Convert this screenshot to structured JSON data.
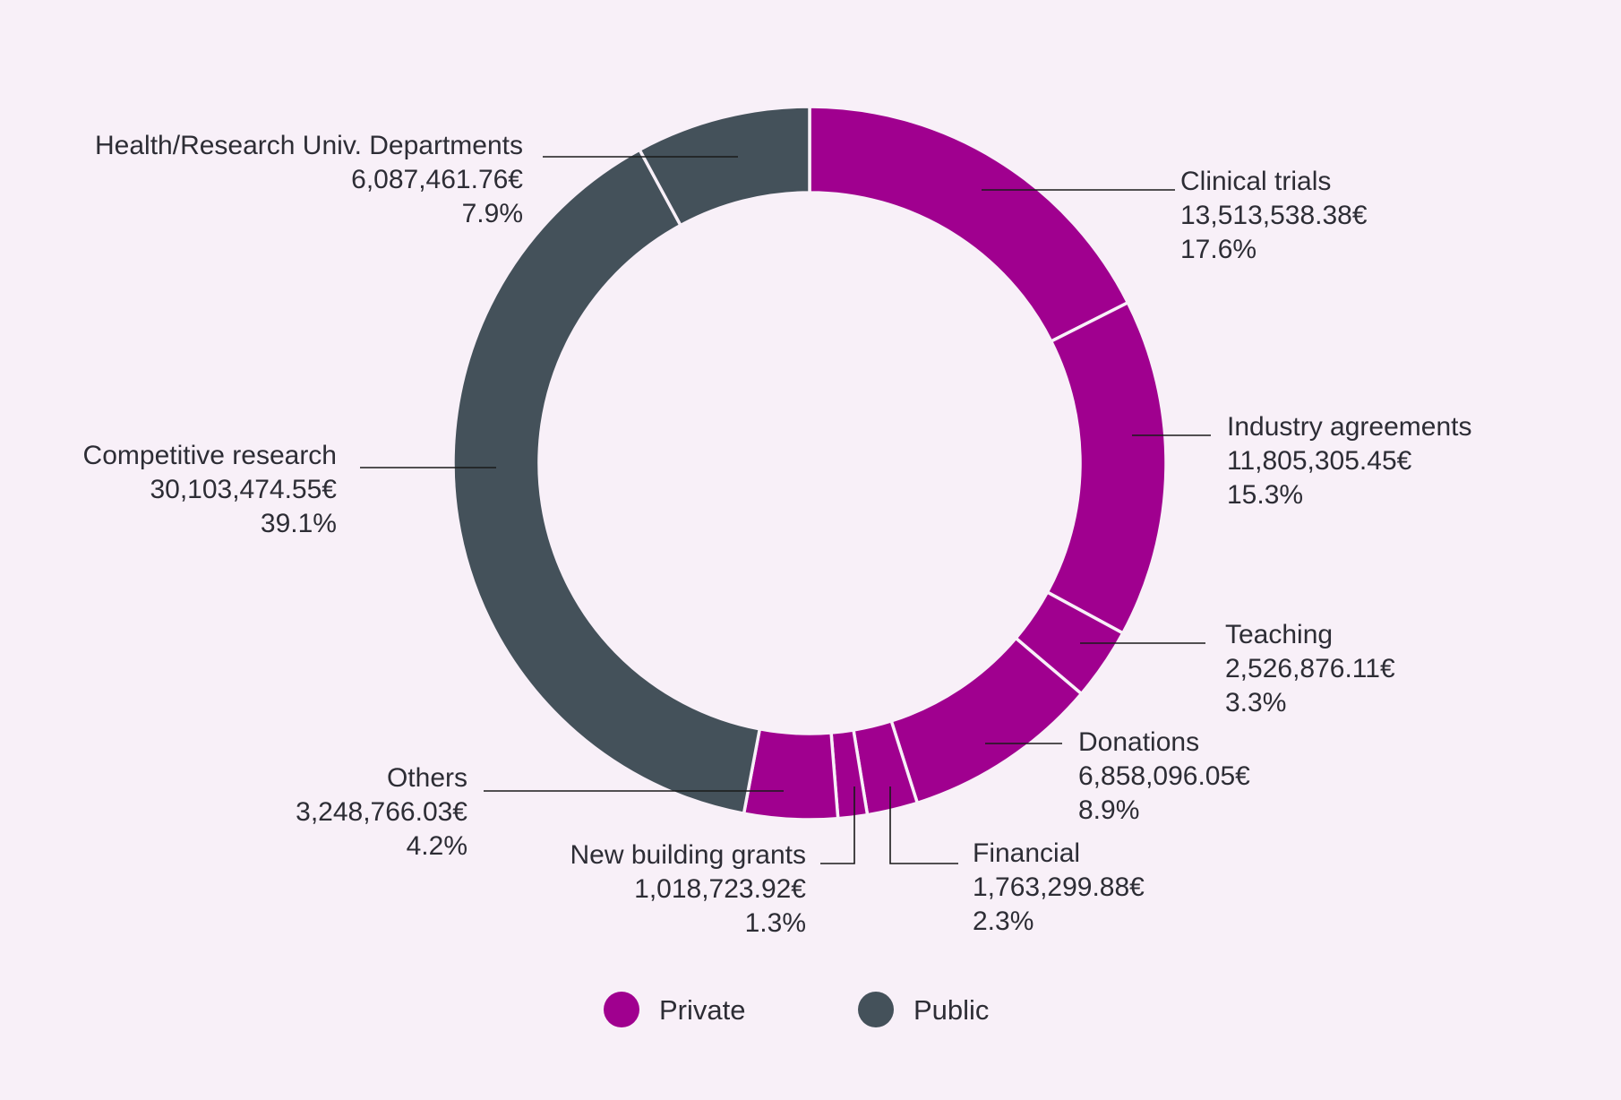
{
  "chart_data": {
    "type": "pie",
    "title": "",
    "colors": {
      "Private": "#a0008f",
      "Public": "#44515a"
    },
    "legend": [
      "Private",
      "Public"
    ],
    "legend_position": "bottom",
    "segments": [
      {
        "label": "Clinical trials",
        "value": 13513538.38,
        "amount": "13,513,538.38€",
        "percent": "17.6%",
        "group": "Private"
      },
      {
        "label": "Industry agreements",
        "value": 11805305.45,
        "amount": "11,805,305.45€",
        "percent": "15.3%",
        "group": "Private"
      },
      {
        "label": "Teaching",
        "value": 2526876.11,
        "amount": "2,526,876.11€",
        "percent": "3.3%",
        "group": "Private"
      },
      {
        "label": "Donations",
        "value": 6858096.05,
        "amount": "6,858,096.05€",
        "percent": "8.9%",
        "group": "Private"
      },
      {
        "label": "Financial",
        "value": 1763299.88,
        "amount": "1,763,299.88€",
        "percent": "2.3%",
        "group": "Private"
      },
      {
        "label": "New building grants",
        "value": 1018723.92,
        "amount": "1,018,723.92€",
        "percent": "1.3%",
        "group": "Private"
      },
      {
        "label": "Others",
        "value": 3248766.03,
        "amount": "3,248,766.03€",
        "percent": "4.2%",
        "group": "Private"
      },
      {
        "label": "Competitive research",
        "value": 30103474.55,
        "amount": "30,103,474.55€",
        "percent": "39.1%",
        "group": "Public"
      },
      {
        "label": "Health/Research Univ. Departments",
        "value": 6087461.76,
        "amount": "6,087,461.76€",
        "percent": "7.9%",
        "group": "Public"
      }
    ]
  }
}
